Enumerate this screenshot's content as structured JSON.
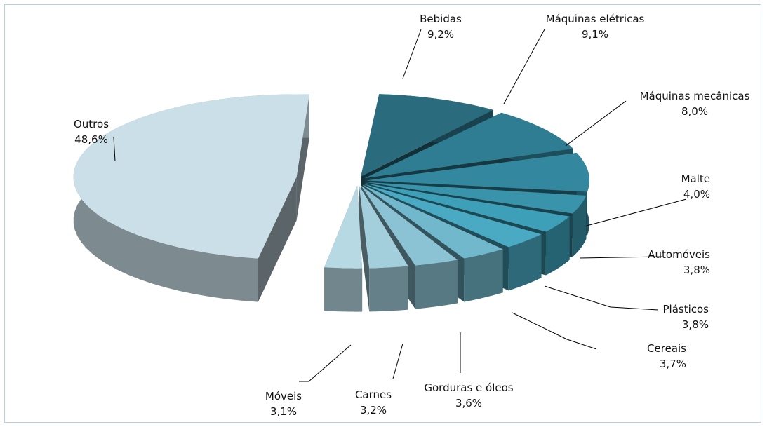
{
  "chart_data": {
    "type": "pie",
    "title": "",
    "series": [
      {
        "values": [
          9.2,
          9.1,
          8.0,
          4.0,
          3.8,
          3.8,
          3.7,
          3.6,
          3.2,
          3.1,
          48.6
        ],
        "labels": [
          "Bebidas",
          "Máquinas elétricas",
          "Máquinas mecânicas",
          "Malte",
          "Automóveis",
          "Plásticos",
          "Cereais",
          "Gorduras e óleos",
          "Carnes",
          "Móveis",
          "Outros"
        ],
        "value_labels": [
          "9,2%",
          "9,1%",
          "8,0%",
          "4,0%",
          "3,8%",
          "3,8%",
          "3,7%",
          "3,6%",
          "3,2%",
          "3,1%",
          "48,6%"
        ]
      }
    ],
    "style": "3d-exploded",
    "legend": "none",
    "colors": [
      "#2a6b7e",
      "#2e7d92",
      "#3388a0",
      "#3993aa",
      "#3ea0b8",
      "#4aaac3",
      "#71b8cc",
      "#8cc3d4",
      "#a3cfdc",
      "#b7d9e4",
      "#cadfe7"
    ]
  }
}
